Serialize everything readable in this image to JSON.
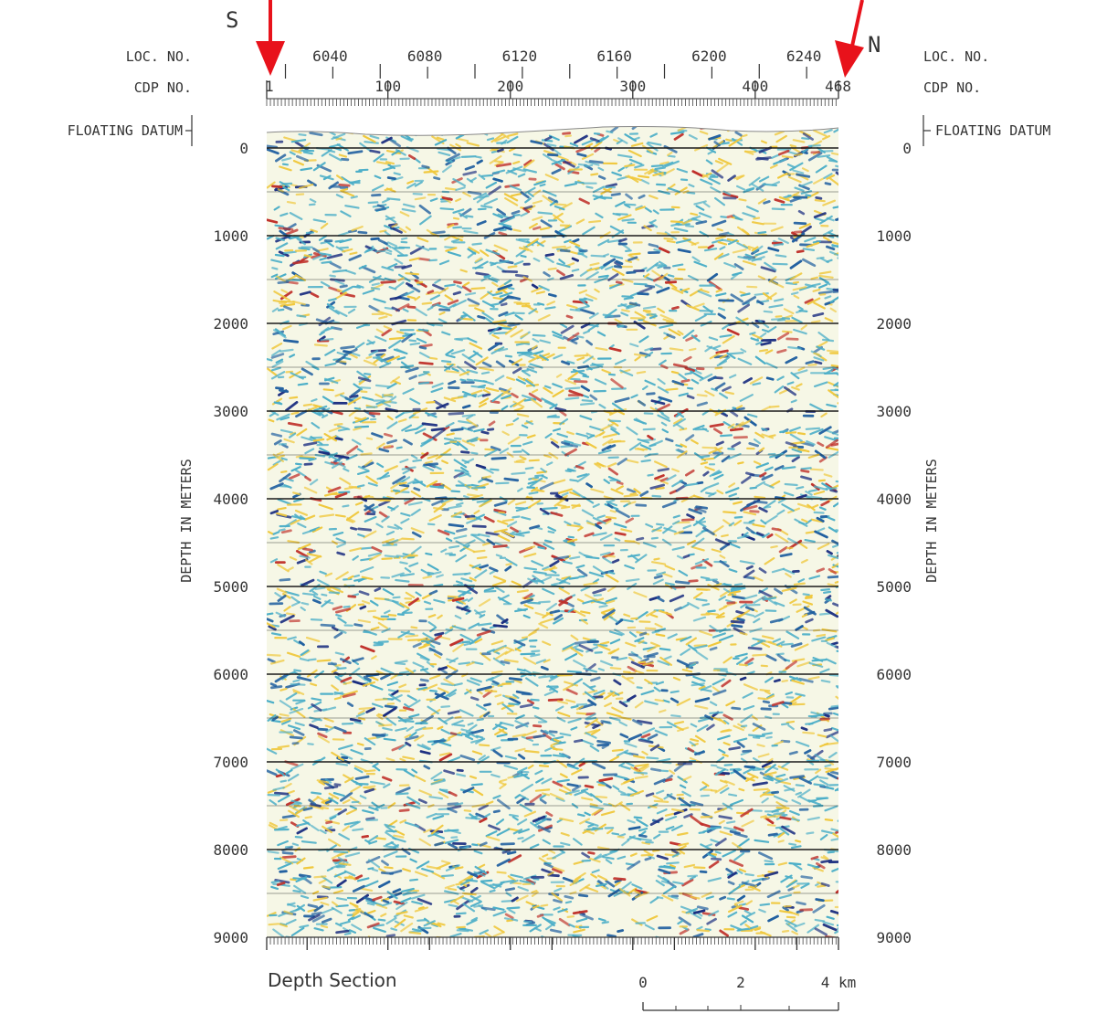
{
  "figure": {
    "south_label": "S",
    "north_label": "N",
    "loc_label": "LOC. NO.",
    "cdp_label": "CDP NO.",
    "datum_label": "FLOATING DATUM",
    "depth_axis_label": "DEPTH IN METERS",
    "caption": "Depth Section",
    "scale_labels": [
      "0",
      "2",
      "4 km"
    ],
    "colors": {
      "arrow": "#e8121b",
      "seis_blue": "#1f5fa0",
      "seis_teal": "#4aaec8",
      "seis_yellow": "#f0c83c",
      "seis_red": "#c0302a",
      "seis_navy": "#1a2d80"
    }
  },
  "chart_data": {
    "type": "heatmap",
    "title": "Depth Section",
    "xlabel": "CDP NO.",
    "ylabel": "DEPTH IN METERS",
    "x_range": [
      1,
      468
    ],
    "ylim": [
      0,
      9000
    ],
    "loc_ticks": [
      "6040",
      "6080",
      "6120",
      "6160",
      "6200",
      "6240"
    ],
    "loc_values": [
      6040,
      6080,
      6120,
      6160,
      6200,
      6240
    ],
    "cdp_ticks": [
      "1",
      "100",
      "200",
      "300",
      "400",
      "468"
    ],
    "cdp_values": [
      1,
      100,
      200,
      300,
      400,
      468
    ],
    "depth_ticks": [
      "0",
      "1000",
      "2000",
      "3000",
      "4000",
      "5000",
      "6000",
      "7000",
      "8000",
      "9000"
    ],
    "depth_values": [
      0,
      1000,
      2000,
      3000,
      4000,
      5000,
      6000,
      7000,
      8000,
      9000
    ],
    "scale_bar_km": [
      0,
      2,
      4
    ]
  }
}
